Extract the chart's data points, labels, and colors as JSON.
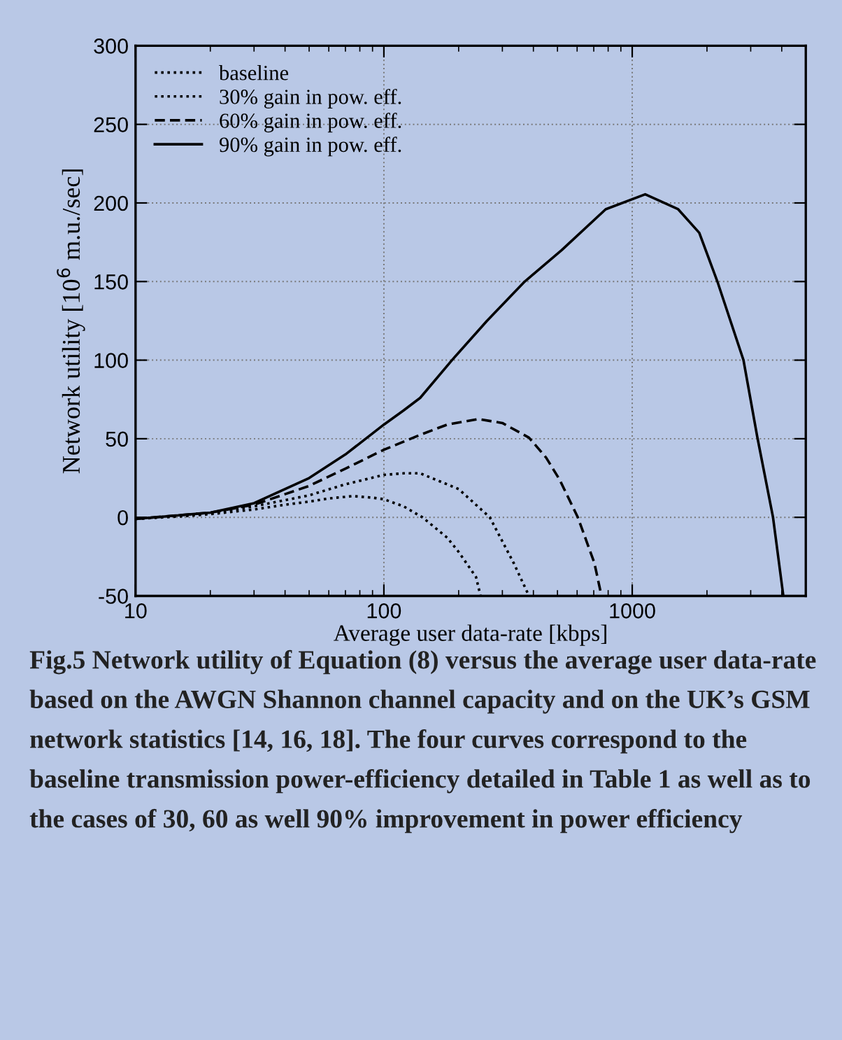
{
  "chart_data": {
    "type": "line",
    "xlabel": "Average user data-rate [kbps]",
    "ylabel": "Network utility [10$^{6}$ m.u./sec]",
    "log": "x",
    "xlim": [
      10,
      5000
    ],
    "xticks": [
      10,
      100,
      1000
    ],
    "ylim": [
      -50,
      300
    ],
    "yticks": [
      -50,
      0,
      50,
      100,
      150,
      200,
      250,
      300
    ],
    "grid": true,
    "legend": "top left",
    "series": [
      {
        "name": "baseline",
        "color": "#000000",
        "line_style": "dotted",
        "x": [
          10,
          15,
          20,
          30,
          40,
          50,
          60,
          75,
          90,
          100,
          120,
          143,
          180,
          200,
          235,
          245
        ],
        "values": [
          -1,
          0.5,
          2,
          5,
          8,
          10,
          12,
          13.5,
          12.5,
          11.5,
          7,
          0,
          -13,
          -22,
          -38,
          -50
        ]
      },
      {
        "name": "30% gain in pow. eff.",
        "color": "#000000",
        "line_style": "dotted",
        "x": [
          10,
          20,
          30,
          50,
          70,
          100,
          120,
          140,
          200,
          267,
          333,
          384
        ],
        "values": [
          -1,
          2.5,
          7,
          14,
          21,
          27,
          28,
          28,
          18,
          0,
          -29,
          -50
        ]
      },
      {
        "name": "60% gain in pow. eff.",
        "color": "#000000",
        "line_style": "dashed",
        "x": [
          10,
          20,
          30,
          50,
          70,
          100,
          140,
          180,
          240,
          300,
          384,
          450,
          510,
          604,
          704,
          752
        ],
        "values": [
          -1,
          3,
          8,
          20,
          31,
          43,
          52.5,
          59,
          62.5,
          60,
          50.7,
          38,
          24,
          0,
          -29,
          -50
        ]
      },
      {
        "name": "90% gain in pow. eff.",
        "color": "#000000",
        "line_style": "solid",
        "x": [
          10,
          20,
          30,
          50,
          70,
          100,
          120,
          140,
          188,
          260,
          369,
          520,
          782,
          1128,
          1531,
          1862,
          2203,
          2806,
          3190,
          3690,
          4060
        ],
        "values": [
          -1,
          3,
          9,
          25,
          40,
          59,
          68,
          76,
          100,
          125,
          150,
          170,
          196,
          205.5,
          196,
          181,
          150,
          100,
          51,
          0,
          -50
        ]
      }
    ],
    "annotations": [
      "Fig.5 Network utility of Equation (8) versus the average user data-rate based on the AWGN Shannon channel capacity and on the UK’s GSM network statistics [14, 16, 18]. The four curves correspond to the baseline transmission power-efficiency detailed in Table 1 as well as to the cases of 30, 60 as well 90% improvement in power efficiency"
    ]
  }
}
